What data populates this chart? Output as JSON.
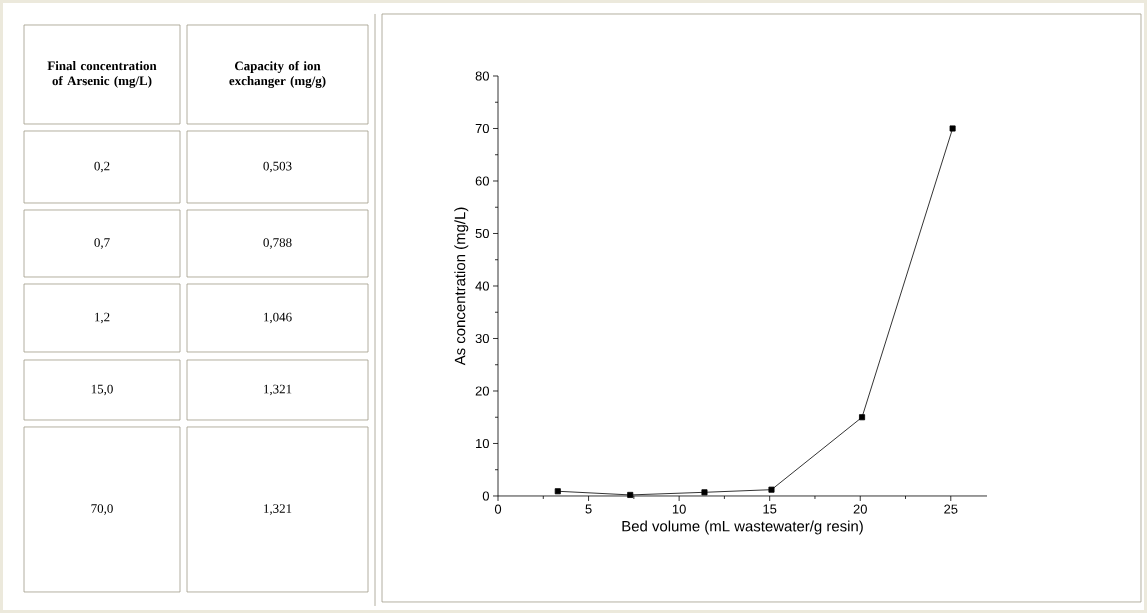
{
  "chart_data": [
    {
      "type": "other",
      "annotations": [
        "Final concentration of Arsenic (mg/L)",
        "Capacity of ion exchanger (mg/g)",
        "0,2",
        "0,503",
        "0,7",
        "0,788",
        "1,2",
        "1,046",
        "15,0",
        "1,321",
        "70,0",
        "1,321"
      ]
    },
    {
      "type": "line",
      "xlabel": "Bed volume (mL wastewater/g resin)",
      "ylabel": "As concentration (mg/L)",
      "x": [
        3.3,
        7.3,
        11.4,
        15.1,
        20.1,
        25.1
      ],
      "series": [
        {
          "color": "#000000",
          "values": [
            0.9,
            0.2,
            0.7,
            1.2,
            15,
            70
          ]
        }
      ],
      "xlim": [
        0,
        27
      ],
      "xticks": [
        0,
        5,
        10,
        15,
        20,
        25
      ],
      "ylim": [
        0,
        80
      ],
      "yticks": [
        0,
        10,
        20,
        30,
        40,
        50,
        60,
        70,
        80
      ],
      "marker": "square",
      "line_style": "solid",
      "grid": false
    }
  ]
}
